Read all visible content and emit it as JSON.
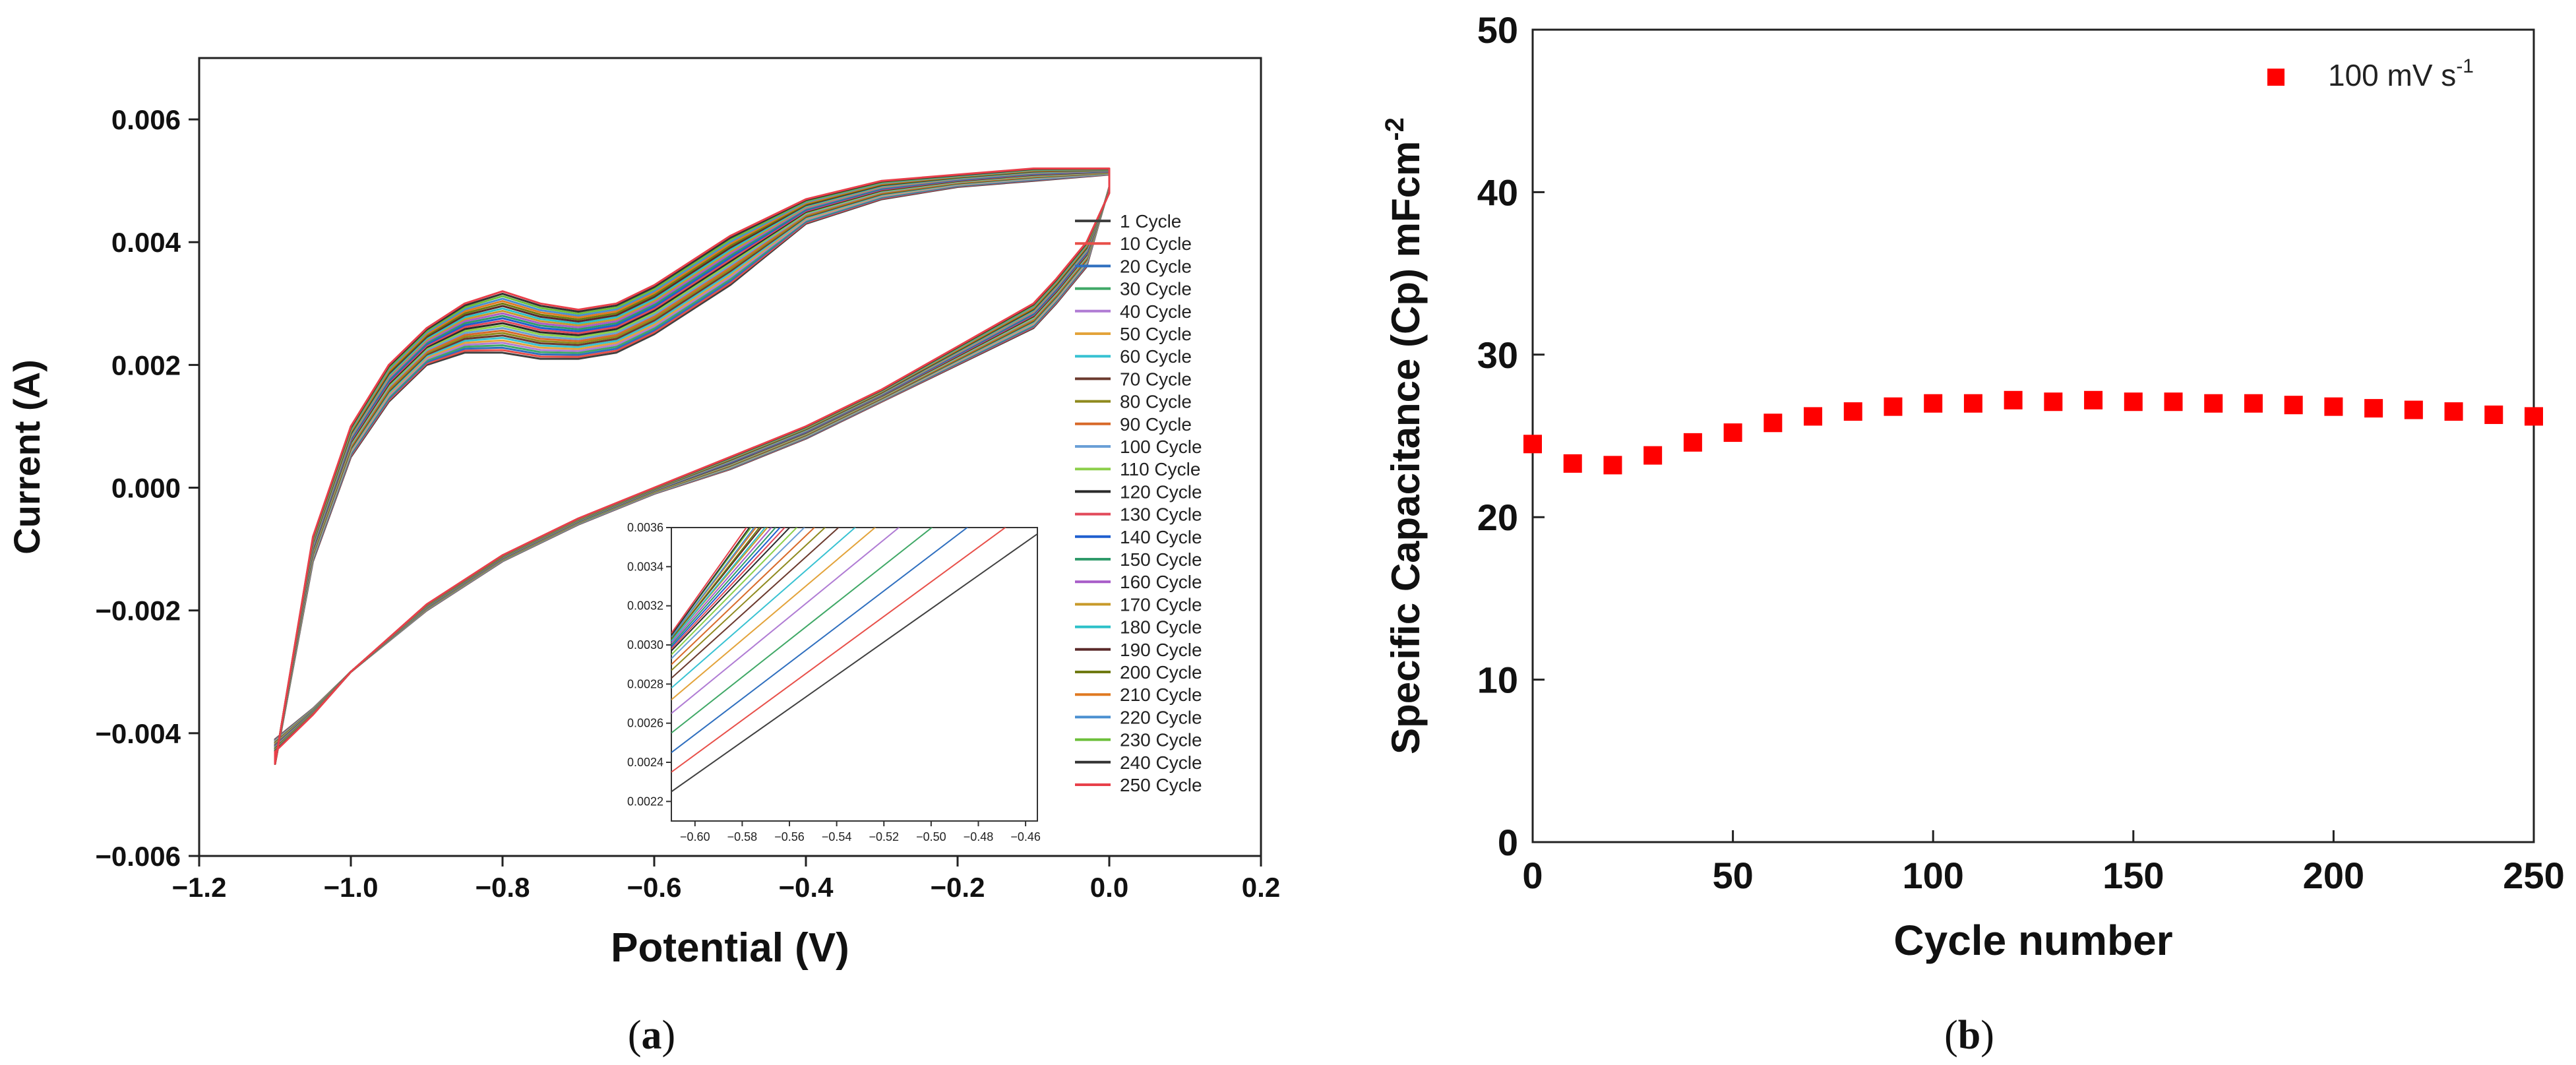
{
  "chart_data": [
    {
      "id": "a",
      "type": "line",
      "panel_label_open": "(",
      "panel_label_letter": "a",
      "panel_label_close": ")",
      "xlabel": "Potential (V)",
      "ylabel": "Current (A)",
      "xlim": [
        -1.2,
        0.2
      ],
      "ylim": [
        -0.006,
        0.007
      ],
      "xticks": [
        -1.2,
        -1.0,
        -0.8,
        -0.6,
        -0.4,
        -0.2,
        0.0,
        0.2
      ],
      "xtick_labels": [
        "−1.2",
        "−1.0",
        "−0.8",
        "−0.6",
        "−0.4",
        "−0.2",
        "0.0",
        "0.2"
      ],
      "yticks": [
        -0.006,
        -0.004,
        -0.002,
        0.0,
        0.002,
        0.004,
        0.006
      ],
      "ytick_labels": [
        "−0.006",
        "−0.004",
        "−0.002",
        "0.000",
        "0.002",
        "0.004",
        "0.006"
      ],
      "legend_position": "right",
      "legend": [
        {
          "name": "1 Cycle",
          "color": "#404040"
        },
        {
          "name": "10 Cycle",
          "color": "#e8504a"
        },
        {
          "name": "20 Cycle",
          "color": "#2f6fbf"
        },
        {
          "name": "30 Cycle",
          "color": "#3fa866"
        },
        {
          "name": "40 Cycle",
          "color": "#b07cd4"
        },
        {
          "name": "50 Cycle",
          "color": "#e3a33a"
        },
        {
          "name": "60 Cycle",
          "color": "#38c2d2"
        },
        {
          "name": "70 Cycle",
          "color": "#6b3a2e"
        },
        {
          "name": "80 Cycle",
          "color": "#8f8a1e"
        },
        {
          "name": "90 Cycle",
          "color": "#d86a2a"
        },
        {
          "name": "100 Cycle",
          "color": "#6a9fd6"
        },
        {
          "name": "110 Cycle",
          "color": "#8ccf4a"
        },
        {
          "name": "120 Cycle",
          "color": "#2b2b2b"
        },
        {
          "name": "130 Cycle",
          "color": "#e24a5a"
        },
        {
          "name": "140 Cycle",
          "color": "#1f5fcf"
        },
        {
          "name": "150 Cycle",
          "color": "#2f9a6a"
        },
        {
          "name": "160 Cycle",
          "color": "#a85cc8"
        },
        {
          "name": "170 Cycle",
          "color": "#c89a2a"
        },
        {
          "name": "180 Cycle",
          "color": "#2cc0c8"
        },
        {
          "name": "190 Cycle",
          "color": "#5a2a2a"
        },
        {
          "name": "200 Cycle",
          "color": "#6f7a12"
        },
        {
          "name": "210 Cycle",
          "color": "#e07a22"
        },
        {
          "name": "220 Cycle",
          "color": "#4a8fd0"
        },
        {
          "name": "230 Cycle",
          "color": "#6cbf3a"
        },
        {
          "name": "240 Cycle",
          "color": "#333333"
        },
        {
          "name": "250 Cycle",
          "color": "#e8404a"
        }
      ],
      "cv_envelope": {
        "upper_branch_first": [
          [
            -1.1,
            -0.0045
          ],
          [
            -1.05,
            -0.0012
          ],
          [
            -1.0,
            0.0005
          ],
          [
            -0.95,
            0.0014
          ],
          [
            -0.9,
            0.002
          ],
          [
            -0.85,
            0.0022
          ],
          [
            -0.8,
            0.0022
          ],
          [
            -0.75,
            0.0021
          ],
          [
            -0.7,
            0.0021
          ],
          [
            -0.65,
            0.0022
          ],
          [
            -0.6,
            0.0025
          ],
          [
            -0.5,
            0.0033
          ],
          [
            -0.4,
            0.0043
          ],
          [
            -0.3,
            0.0047
          ],
          [
            -0.2,
            0.0049
          ],
          [
            -0.1,
            0.005
          ],
          [
            0.0,
            0.0051
          ]
        ],
        "upper_branch_last": [
          [
            -1.1,
            -0.0045
          ],
          [
            -1.05,
            -0.0008
          ],
          [
            -1.0,
            0.001
          ],
          [
            -0.95,
            0.002
          ],
          [
            -0.9,
            0.0026
          ],
          [
            -0.85,
            0.003
          ],
          [
            -0.8,
            0.0032
          ],
          [
            -0.75,
            0.003
          ],
          [
            -0.7,
            0.0029
          ],
          [
            -0.65,
            0.003
          ],
          [
            -0.6,
            0.0033
          ],
          [
            -0.5,
            0.0041
          ],
          [
            -0.4,
            0.0047
          ],
          [
            -0.3,
            0.005
          ],
          [
            -0.2,
            0.0051
          ],
          [
            -0.1,
            0.0052
          ],
          [
            0.0,
            0.0052
          ]
        ],
        "lower_branch_first": [
          [
            0.0,
            0.0049
          ],
          [
            -0.03,
            0.0036
          ],
          [
            -0.07,
            0.003
          ],
          [
            -0.1,
            0.0026
          ],
          [
            -0.2,
            0.002
          ],
          [
            -0.3,
            0.0014
          ],
          [
            -0.4,
            0.0008
          ],
          [
            -0.5,
            0.0003
          ],
          [
            -0.6,
            -0.0001
          ],
          [
            -0.7,
            -0.0006
          ],
          [
            -0.8,
            -0.0012
          ],
          [
            -0.9,
            -0.002
          ],
          [
            -1.0,
            -0.003
          ],
          [
            -1.05,
            -0.0036
          ],
          [
            -1.1,
            -0.0041
          ]
        ],
        "lower_branch_last": [
          [
            0.0,
            0.0048
          ],
          [
            -0.03,
            0.004
          ],
          [
            -0.07,
            0.0034
          ],
          [
            -0.1,
            0.003
          ],
          [
            -0.2,
            0.0023
          ],
          [
            -0.3,
            0.0016
          ],
          [
            -0.4,
            0.001
          ],
          [
            -0.5,
            0.0005
          ],
          [
            -0.6,
            0.0
          ],
          [
            -0.7,
            -0.0005
          ],
          [
            -0.8,
            -0.0011
          ],
          [
            -0.9,
            -0.0019
          ],
          [
            -1.0,
            -0.003
          ],
          [
            -1.05,
            -0.0037
          ],
          [
            -1.1,
            -0.0043
          ]
        ]
      },
      "inset": {
        "xlim": [
          -0.61,
          -0.455
        ],
        "ylim": [
          0.0021,
          0.0036
        ],
        "xticks": [
          -0.6,
          -0.58,
          -0.56,
          -0.54,
          -0.52,
          -0.5,
          -0.48,
          -0.46
        ],
        "xtick_labels": [
          "−0.60",
          "−0.58",
          "−0.56",
          "−0.54",
          "−0.52",
          "−0.50",
          "−0.48",
          "−0.46"
        ],
        "yticks": [
          0.0022,
          0.0024,
          0.0026,
          0.0028,
          0.003,
          0.0032,
          0.0034,
          0.0036
        ],
        "ytick_labels": [
          "0.0022",
          "0.0024",
          "0.0026",
          "0.0028",
          "0.0030",
          "0.0032",
          "0.0034",
          "0.0036"
        ],
        "series_start_values_at_x_min": [
          0.00225,
          0.00235,
          0.00245,
          0.00255,
          0.00265,
          0.00272,
          0.00278,
          0.00283,
          0.00287,
          0.0029,
          0.00293,
          0.00295,
          0.00297,
          0.00298,
          0.00299,
          0.003,
          0.00301,
          0.00302,
          0.00302,
          0.00303,
          0.00303,
          0.00304,
          0.00304,
          0.00305,
          0.00305,
          0.00306
        ],
        "slope_per_volt": 0.0085
      }
    },
    {
      "id": "b",
      "type": "scatter",
      "panel_label_open": "(",
      "panel_label_letter": "b",
      "panel_label_close": ")",
      "xlabel": "Cycle number",
      "ylabel_main": "Specific Capacitance (Cp) mFcm",
      "ylabel_sup": "-2",
      "xlim": [
        0,
        250
      ],
      "ylim": [
        0,
        50
      ],
      "xticks": [
        0,
        50,
        100,
        150,
        200,
        250
      ],
      "xtick_labels": [
        "0",
        "50",
        "100",
        "150",
        "200",
        "250"
      ],
      "yticks": [
        0,
        10,
        20,
        30,
        40,
        50
      ],
      "ytick_labels": [
        "0",
        "10",
        "20",
        "30",
        "40",
        "50"
      ],
      "legend_position": "top-right",
      "series": [
        {
          "name": "100 mV s",
          "name_sup": "-1",
          "color": "#ff0000",
          "marker": "square",
          "x": [
            0,
            10,
            20,
            30,
            40,
            50,
            60,
            70,
            80,
            90,
            100,
            110,
            120,
            130,
            140,
            150,
            160,
            170,
            180,
            190,
            200,
            210,
            220,
            230,
            240,
            250
          ],
          "y": [
            24.5,
            23.3,
            23.2,
            23.8,
            24.6,
            25.2,
            25.8,
            26.2,
            26.5,
            26.8,
            27.0,
            27.0,
            27.2,
            27.1,
            27.2,
            27.1,
            27.1,
            27.0,
            27.0,
            26.9,
            26.8,
            26.7,
            26.6,
            26.5,
            26.3,
            26.2
          ]
        }
      ]
    }
  ]
}
